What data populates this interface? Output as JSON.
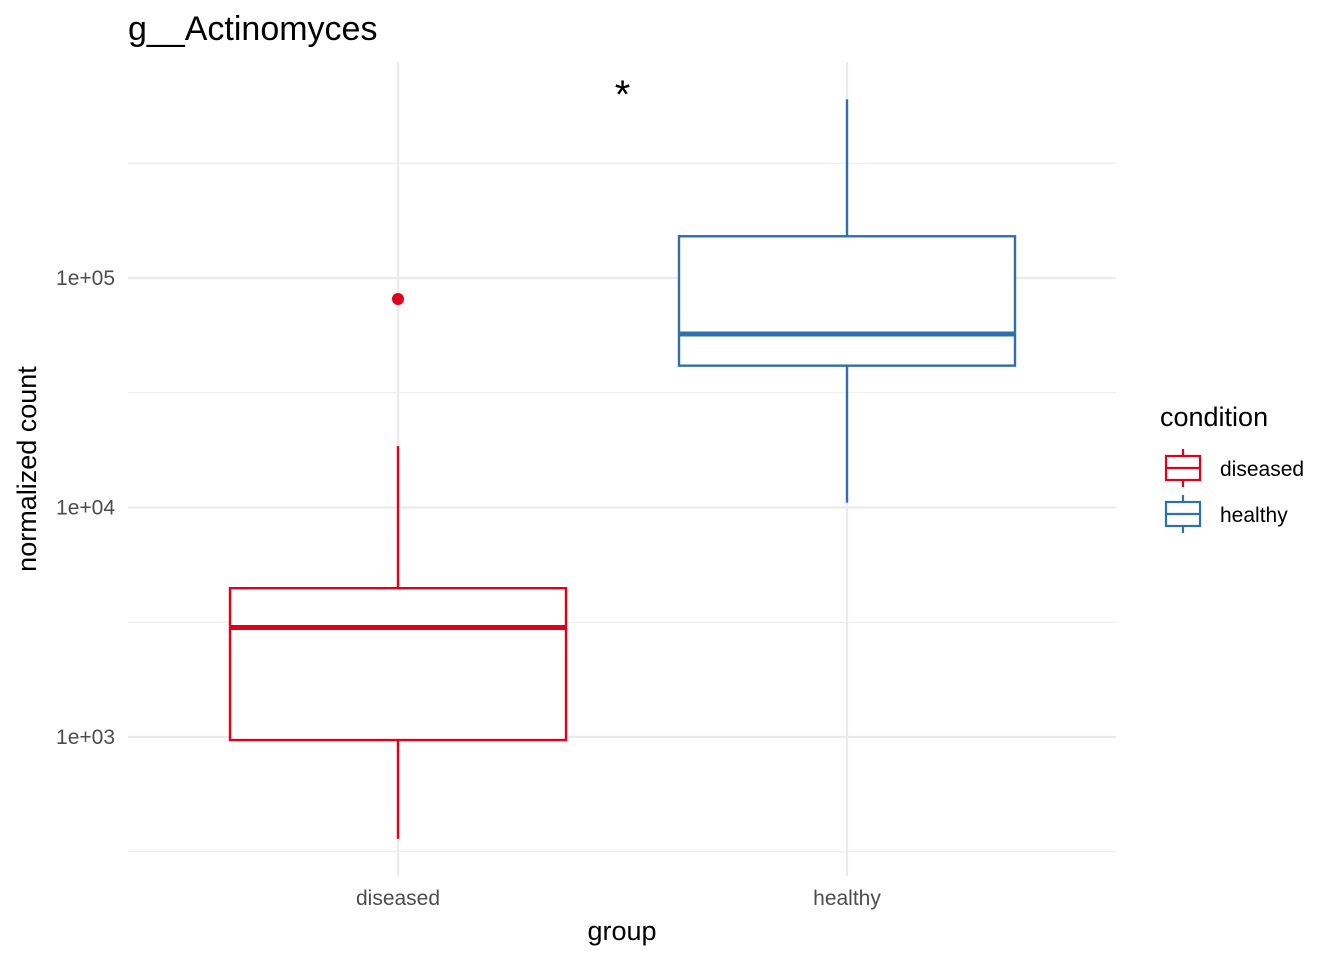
{
  "chart_data": {
    "type": "boxplot",
    "title": "g__Actinomyces",
    "xlabel": "group",
    "ylabel": "normalized count",
    "y_scale": "log10",
    "ylim": [
      290,
      900000
    ],
    "categories": [
      "diseased",
      "healthy"
    ],
    "y_ticks": [
      {
        "value": 1000,
        "label": "1e+03"
      },
      {
        "value": 10000,
        "label": "1e+04"
      },
      {
        "value": 100000,
        "label": "1e+05"
      }
    ],
    "y_minor_ticks": [
      316.2,
      3162.3,
      31622.8,
      316227.8
    ],
    "grid": true,
    "legend": {
      "title": "condition",
      "position": "right",
      "entries": [
        {
          "name": "diseased",
          "color": "#e0001b"
        },
        {
          "name": "healthy",
          "color": "#2f6fad"
        }
      ]
    },
    "series": [
      {
        "name": "diseased",
        "category": "diseased",
        "color": "#e0001b",
        "whisker_low": 360,
        "q1": 970,
        "median": 3000,
        "q3": 4450,
        "whisker_high": 18500,
        "outliers": [
          81000
        ]
      },
      {
        "name": "healthy",
        "category": "healthy",
        "color": "#2f6fad",
        "whisker_low": 10500,
        "q1": 41500,
        "median": 57000,
        "q3": 152000,
        "whisker_high": 600000,
        "outliers": []
      }
    ],
    "annotations": [
      {
        "text": "*",
        "x_between": [
          "diseased",
          "healthy"
        ],
        "y": 730000
      }
    ]
  }
}
